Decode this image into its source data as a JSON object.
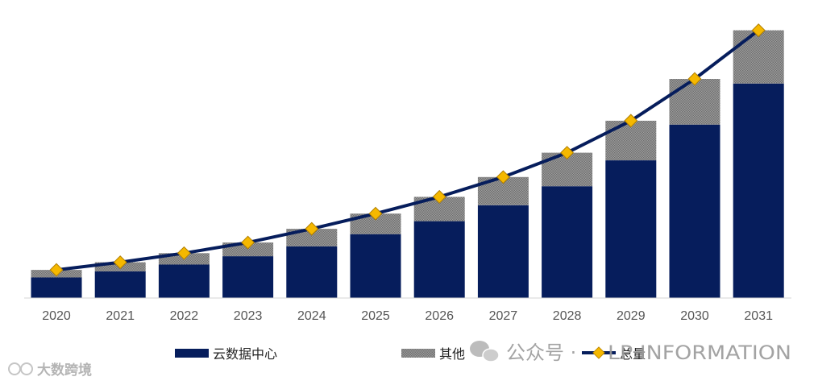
{
  "chart_data": {
    "type": "bar",
    "stacked": true,
    "categories": [
      "2020",
      "2021",
      "2022",
      "2023",
      "2024",
      "2025",
      "2026",
      "2027",
      "2028",
      "2029",
      "2030",
      "2031"
    ],
    "series": [
      {
        "name": "云数据中心",
        "kind": "bar",
        "color": "#061d5c",
        "values": [
          27,
          35,
          44,
          55,
          68,
          84,
          101,
          122,
          147,
          181,
          228,
          282
        ]
      },
      {
        "name": "其他",
        "kind": "bar",
        "color": "#8a8a8a",
        "values": [
          10,
          12,
          15,
          18,
          23,
          27,
          32,
          37,
          44,
          52,
          60,
          70
        ]
      },
      {
        "name": "总量",
        "kind": "line",
        "color": "#061d5c",
        "marker_color": "#f5b800",
        "values": [
          37,
          47,
          59,
          73,
          91,
          111,
          133,
          159,
          191,
          233,
          288,
          352
        ]
      }
    ],
    "ylim": [
      0,
      360
    ],
    "title": "",
    "xlabel": "",
    "ylabel": "",
    "grid": false,
    "legend": "bottom"
  },
  "watermark": {
    "left_text": "大数跨境",
    "right_prefix": "公众号 ·",
    "right_text": "LP INFORMATION"
  }
}
